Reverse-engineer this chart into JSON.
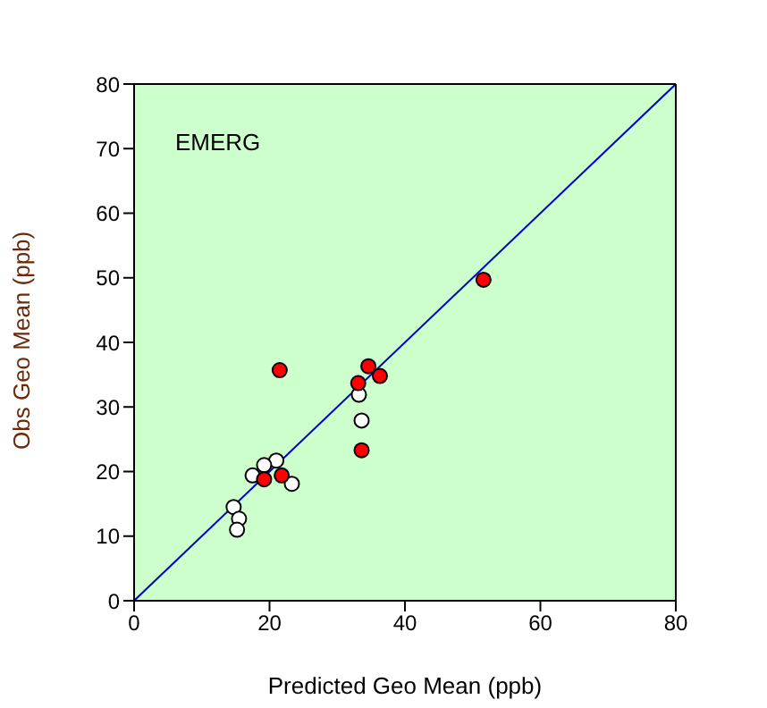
{
  "chart_data": {
    "type": "scatter",
    "xlabel": "Predicted Geo Mean (ppb)",
    "ylabel": "Obs Geo Mean (ppb)",
    "annotations": [
      "EMERG"
    ],
    "xlim": [
      0,
      80
    ],
    "ylim": [
      0,
      80
    ],
    "xticks": [
      0,
      20,
      40,
      60,
      80
    ],
    "yticks": [
      0,
      10,
      20,
      30,
      40,
      50,
      60,
      70,
      80
    ],
    "grid": false,
    "legend": false,
    "series": [
      {
        "type": "line",
        "color": "#0000cc",
        "marker": "none",
        "x": [
          0,
          80
        ],
        "values": [
          0,
          80
        ]
      },
      {
        "marker": "circle",
        "color": "#ffffff",
        "x": [
          33.2,
          33.6,
          23.3,
          21.0,
          19.2,
          17.5,
          14.7,
          15.5,
          15.2
        ],
        "values": [
          31.9,
          27.9,
          18.1,
          21.7,
          21.0,
          19.4,
          14.5,
          12.7,
          11.0
        ]
      },
      {
        "marker": "circle",
        "color": "#ff0000",
        "x": [
          21.5,
          34.6,
          33.1,
          36.3,
          33.6,
          19.2,
          21.8,
          51.6
        ],
        "values": [
          35.7,
          36.3,
          33.7,
          34.8,
          23.3,
          18.8,
          19.4,
          49.7
        ]
      }
    ]
  }
}
